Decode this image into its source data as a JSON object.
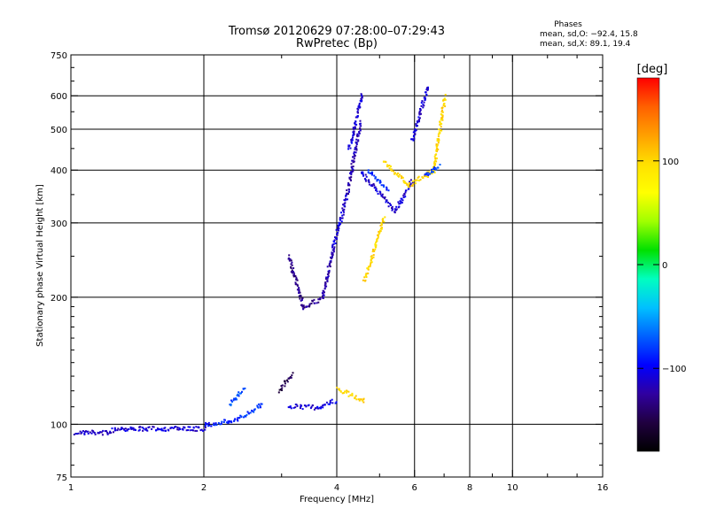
{
  "chart_data": {
    "type": "scatter",
    "title": "Tromsø 20120629 07:28:00–07:29:43",
    "subtitle": "RwPretec (Bp)",
    "stats_title": "Phases",
    "stats_o": "mean, sd,O: −92.4, 15.8",
    "stats_x": "mean, sd,X:  89.1, 19.4",
    "xlabel": "Frequency [MHz]",
    "ylabel": "Stationary phase Virtual Height [km]",
    "xscale": "log",
    "yscale": "log",
    "xlim": [
      1,
      16
    ],
    "ylim": [
      75,
      750
    ],
    "grid": true,
    "x_ticks": [
      "1",
      "2",
      "4",
      "6",
      "8",
      "10",
      "16"
    ],
    "x_tick_values": [
      1,
      2,
      4,
      6,
      8,
      10,
      16
    ],
    "x_minor_ticks": [
      3,
      5,
      7,
      9,
      12,
      14
    ],
    "x_gridlines": [
      2,
      4,
      6,
      8,
      10
    ],
    "y_ticks": [
      "75",
      "100",
      "200",
      "300",
      "400",
      "500",
      "600",
      "750"
    ],
    "y_tick_values": [
      75,
      100,
      200,
      300,
      400,
      500,
      600,
      750
    ],
    "y_minor_ticks": [
      80,
      90,
      110,
      120,
      130,
      140,
      150,
      160,
      170,
      180,
      190,
      250,
      350,
      450,
      550,
      650,
      700
    ],
    "y_gridlines": [
      100,
      200,
      300,
      400,
      500,
      600
    ],
    "colorbar": {
      "label": "[deg]",
      "range": [
        -180,
        180
      ],
      "ticks": [
        "100",
        "0",
        "−100"
      ],
      "tick_values": [
        100,
        0,
        -100
      ],
      "colors": [
        "#ff0000",
        "#ff6000",
        "#ffa000",
        "#ffe000",
        "#ffff00",
        "#a0ff00",
        "#00e000",
        "#00ffc0",
        "#00c0ff",
        "#0060ff",
        "#0000ff",
        "#3000a0",
        "#200040",
        "#000000"
      ]
    },
    "series": [
      {
        "x": [
          1.02,
          1.2
        ],
        "y": [
          96,
          96
        ],
        "phase": -115
      },
      {
        "x": [
          1.2,
          1.3
        ],
        "y": [
          96,
          99
        ],
        "phase": -110
      },
      {
        "x": [
          1.3,
          2.0
        ],
        "y": [
          98,
          98
        ],
        "phase": -110
      },
      {
        "x": [
          2.0,
          2.4
        ],
        "y": [
          100,
          103
        ],
        "phase": -90
      },
      {
        "x": [
          2.4,
          2.7
        ],
        "y": [
          104,
          112
        ],
        "phase": -80
      },
      {
        "x": [
          2.28,
          2.45
        ],
        "y": [
          112,
          122
        ],
        "phase": -75
      },
      {
        "x": [
          2.95,
          3.15
        ],
        "y": [
          120,
          132
        ],
        "phase": -150
      },
      {
        "x": [
          3.1,
          3.6
        ],
        "y": [
          111,
          110
        ],
        "phase": -110
      },
      {
        "x": [
          3.6,
          3.95
        ],
        "y": [
          110,
          114
        ],
        "phase": -100
      },
      {
        "x": [
          3.1,
          3.35
        ],
        "y": [
          250,
          190
        ],
        "phase": -130
      },
      {
        "x": [
          3.35,
          3.7
        ],
        "y": [
          190,
          200
        ],
        "phase": -130
      },
      {
        "x": [
          3.7,
          3.9
        ],
        "y": [
          200,
          260
        ],
        "phase": -120
      },
      {
        "x": [
          3.9,
          4.2
        ],
        "y": [
          260,
          350
        ],
        "phase": -110
      },
      {
        "x": [
          4.2,
          4.5
        ],
        "y": [
          350,
          520
        ],
        "phase": -120
      },
      {
        "x": [
          4.25,
          4.55
        ],
        "y": [
          450,
          610
        ],
        "phase": -110
      },
      {
        "x": [
          4.5,
          5.4
        ],
        "y": [
          400,
          320
        ],
        "phase": -110
      },
      {
        "x": [
          5.4,
          5.9
        ],
        "y": [
          320,
          380
        ],
        "phase": -110
      },
      {
        "x": [
          4.7,
          5.2
        ],
        "y": [
          400,
          360
        ],
        "phase": -85
      },
      {
        "x": [
          4.0,
          4.6
        ],
        "y": [
          122,
          114
        ],
        "phase": 100
      },
      {
        "x": [
          4.6,
          5.1
        ],
        "y": [
          220,
          310
        ],
        "phase": 100
      },
      {
        "x": [
          5.1,
          5.8
        ],
        "y": [
          420,
          370
        ],
        "phase": 100
      },
      {
        "x": [
          5.8,
          6.6
        ],
        "y": [
          370,
          400
        ],
        "phase": 100
      },
      {
        "x": [
          6.6,
          7.0
        ],
        "y": [
          400,
          600
        ],
        "phase": 100
      },
      {
        "x": [
          5.9,
          6.4
        ],
        "y": [
          470,
          630
        ],
        "phase": -110
      },
      {
        "x": [
          6.3,
          6.8
        ],
        "y": [
          390,
          410
        ],
        "phase": -80
      }
    ]
  }
}
